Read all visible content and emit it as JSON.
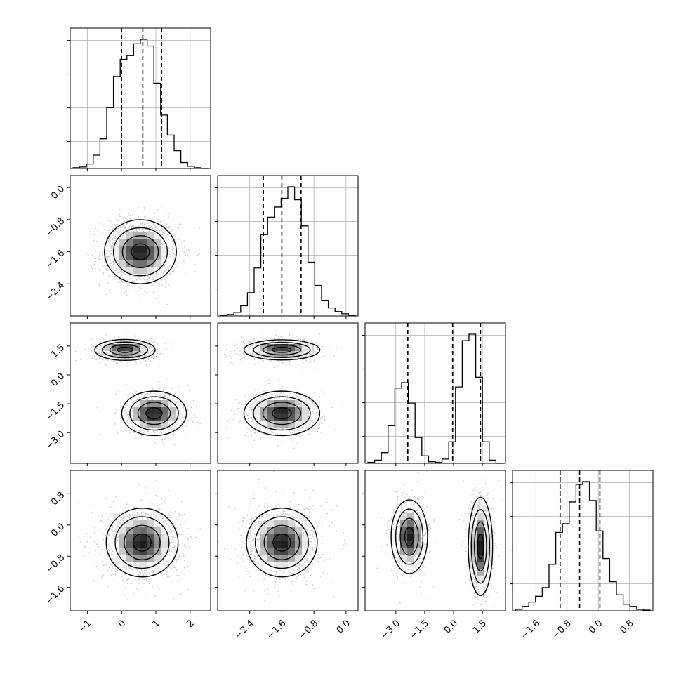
{
  "chart_data": {
    "type": "corner",
    "parameters": 4,
    "colors": {
      "line": "#000000",
      "grid": "#b0b0b0",
      "scatter": "#9a9a9a",
      "background": "#ffffff"
    },
    "axes": [
      {
        "range": [
          -1.5,
          2.6
        ],
        "ticks": [
          -1,
          0,
          1,
          2
        ],
        "tick_labels": [
          "−1",
          "0",
          "1",
          "2"
        ]
      },
      {
        "range": [
          -3.2,
          0.3
        ],
        "ticks": [
          -2.4,
          -1.6,
          -0.8,
          0.0
        ],
        "tick_labels": [
          "−2.4",
          "−1.6",
          "−0.8",
          "0.0"
        ]
      },
      {
        "range": [
          -4.6,
          2.7
        ],
        "ticks": [
          -3.0,
          -1.5,
          0.0,
          1.5
        ],
        "tick_labels": [
          "−3.0",
          "−1.5",
          "0.0",
          "1.5"
        ]
      },
      {
        "range": [
          -2.2,
          1.4
        ],
        "ticks": [
          -1.6,
          -0.8,
          0.0,
          0.8
        ],
        "tick_labels": [
          "−1.6",
          "−0.8",
          "0.0",
          "0.8"
        ]
      }
    ],
    "histograms": [
      {
        "bins": 20,
        "quantiles": [
          0.0,
          0.62,
          1.17
        ],
        "counts": [
          1,
          2,
          6,
          18,
          40,
          82,
          124,
          147,
          152,
          168,
          174,
          165,
          115,
          72,
          45,
          24,
          8,
          3,
          1,
          0
        ]
      },
      {
        "bins": 20,
        "quantiles": [
          -2.06,
          -1.6,
          -1.12
        ],
        "counts": [
          1,
          2,
          5,
          14,
          32,
          66,
          112,
          136,
          150,
          162,
          178,
          160,
          124,
          74,
          42,
          21,
          11,
          6,
          3,
          1
        ]
      },
      {
        "bins": 20,
        "quantiles": [
          -2.38,
          -0.05,
          1.4
        ],
        "counts": [
          2,
          6,
          20,
          70,
          140,
          150,
          112,
          48,
          14,
          3,
          2,
          8,
          40,
          142,
          228,
          240,
          160,
          40,
          6,
          0
        ]
      },
      {
        "bins": 20,
        "quantiles": [
          -0.98,
          -0.48,
          0.04
        ],
        "counts": [
          2,
          6,
          12,
          20,
          32,
          64,
          108,
          120,
          150,
          174,
          178,
          152,
          110,
          72,
          40,
          22,
          9,
          6,
          2,
          1
        ]
      }
    ],
    "scatter_panels": [
      {
        "row": 1,
        "col": 0,
        "modes": [
          {
            "mean": [
              0.55,
              -1.6
            ],
            "sd": [
              0.5,
              0.38
            ],
            "weight": 1.0
          }
        ]
      },
      {
        "row": 2,
        "col": 0,
        "modes": [
          {
            "mean": [
              0.1,
              1.3
            ],
            "sd": [
              0.42,
              0.26
            ],
            "weight": 0.55
          },
          {
            "mean": [
              0.95,
              -2.0
            ],
            "sd": [
              0.45,
              0.55
            ],
            "weight": 0.45
          }
        ]
      },
      {
        "row": 2,
        "col": 1,
        "modes": [
          {
            "mean": [
              -1.6,
              1.3
            ],
            "sd": [
              0.45,
              0.25
            ],
            "weight": 0.55
          },
          {
            "mean": [
              -1.6,
              -2.0
            ],
            "sd": [
              0.45,
              0.55
            ],
            "weight": 0.45
          }
        ]
      },
      {
        "row": 3,
        "col": 0,
        "modes": [
          {
            "mean": [
              0.6,
              -0.45
            ],
            "sd": [
              0.5,
              0.42
            ],
            "weight": 1.0
          }
        ]
      },
      {
        "row": 3,
        "col": 1,
        "modes": [
          {
            "mean": [
              -1.6,
              -0.45
            ],
            "sd": [
              0.42,
              0.42
            ],
            "weight": 1.0
          }
        ]
      },
      {
        "row": 3,
        "col": 2,
        "modes": [
          {
            "mean": [
              -2.3,
              -0.3
            ],
            "sd": [
              0.45,
              0.45
            ],
            "weight": 0.45
          },
          {
            "mean": [
              1.4,
              -0.55
            ],
            "sd": [
              0.3,
              0.6
            ],
            "weight": 0.55
          }
        ]
      }
    ],
    "contour_levels": [
      "0.5-sigma",
      "1-sigma",
      "1.5-sigma",
      "2-sigma"
    ],
    "grid": true,
    "title": "",
    "xlabel": "",
    "ylabel": ""
  }
}
